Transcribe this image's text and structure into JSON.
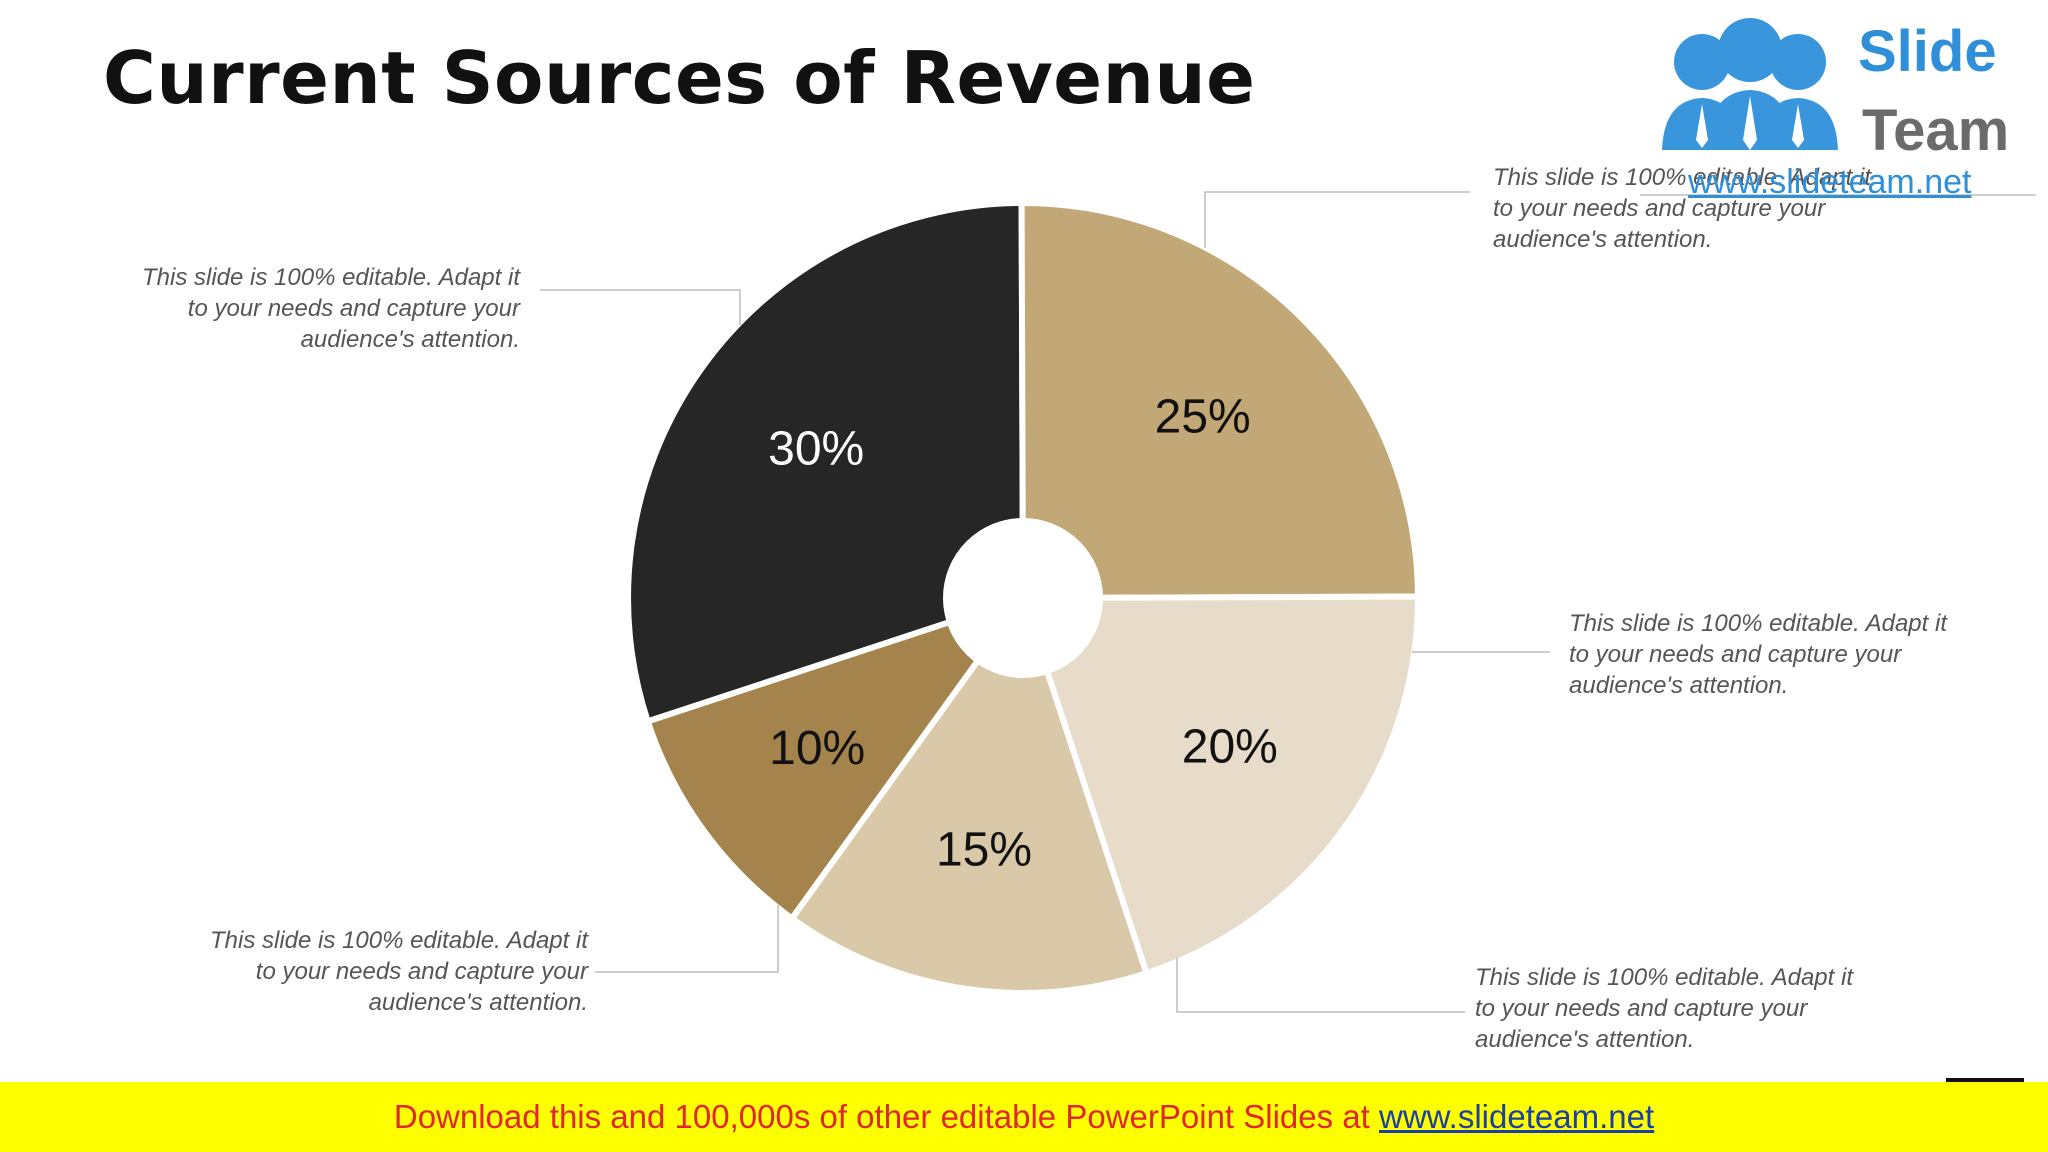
{
  "slide": {
    "title": "Current Sources of Revenue"
  },
  "logo": {
    "word1": "Slide",
    "word2": "Team",
    "url": "www.slideteam.net"
  },
  "chart_data": {
    "type": "pie",
    "categories": [
      "30%",
      "25%",
      "20%",
      "15%",
      "10%"
    ],
    "values": [
      30,
      25,
      20,
      15,
      10
    ],
    "data_labels": [
      "30%",
      "25%",
      "20%",
      "15%",
      "10%"
    ],
    "colors": [
      "#262626",
      "#c3a877",
      "#e6dcc9",
      "#d9c9a8",
      "#a4844c"
    ],
    "label_colors": [
      "#ffffff",
      "#111111",
      "#111111",
      "#111111",
      "#111111"
    ],
    "donut_hole": true
  },
  "callouts": [
    {
      "text": "This slide is 100% editable. Adapt it to your needs and capture your audience's attention."
    },
    {
      "text": "This slide is 100% editable. Adapt it to your needs and capture your audience's attention."
    },
    {
      "text": "This slide is 100% editable. Adapt it to your needs and capture your audience's attention."
    },
    {
      "text": "This slide is 100% editable. Adapt it to your needs and capture your audience's attention."
    },
    {
      "text": "This slide is 100% editable. Adapt it to your needs and capture your audience's attention."
    }
  ],
  "footer": {
    "text": "Download this and 100,000s of other editable PowerPoint Slides at ",
    "url": "www.slideteam.net"
  }
}
